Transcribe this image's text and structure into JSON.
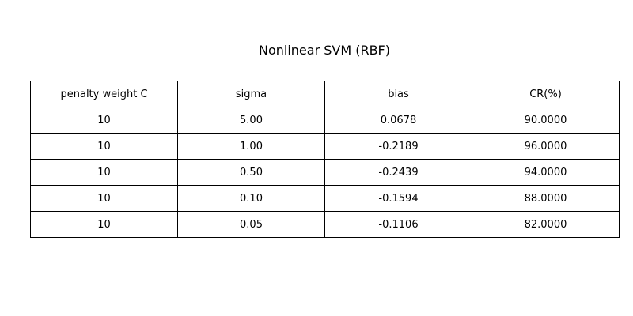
{
  "chart_data": {
    "type": "table",
    "title": "Nonlinear SVM (RBF)",
    "columns": [
      "penalty weight C",
      "sigma",
      "bias",
      "CR(%)"
    ],
    "rows": [
      [
        "10",
        "5.00",
        "0.0678",
        "90.0000"
      ],
      [
        "10",
        "1.00",
        "-0.2189",
        "96.0000"
      ],
      [
        "10",
        "0.50",
        "-0.2439",
        "94.0000"
      ],
      [
        "10",
        "0.10",
        "-0.1594",
        "88.0000"
      ],
      [
        "10",
        "0.05",
        "-0.1106",
        "82.0000"
      ]
    ]
  }
}
